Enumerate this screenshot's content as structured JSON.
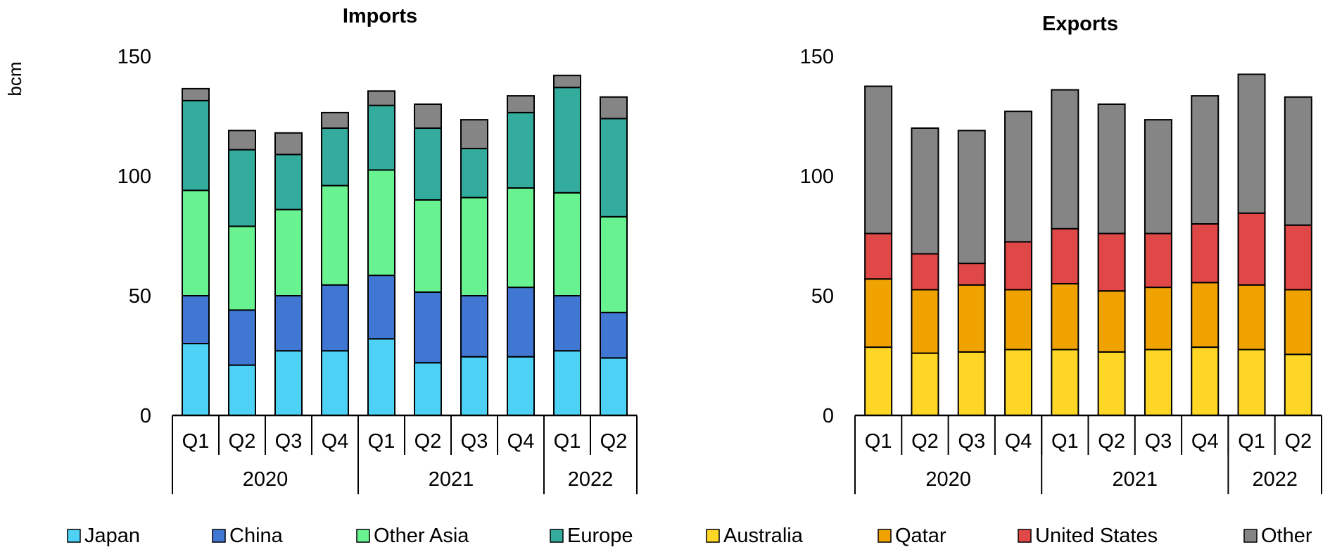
{
  "unit_label": "bcm",
  "chart_data": [
    {
      "type": "bar",
      "stacked": true,
      "title": "Imports",
      "ylabel": "bcm",
      "ylim": [
        0,
        150
      ],
      "yticks": [
        0,
        50,
        100,
        150
      ],
      "categories": [
        "Q1",
        "Q2",
        "Q3",
        "Q4",
        "Q1",
        "Q2",
        "Q3",
        "Q4",
        "Q1",
        "Q2"
      ],
      "groups": [
        {
          "label": "2020",
          "count": 4
        },
        {
          "label": "2021",
          "count": 4
        },
        {
          "label": "2022",
          "count": 2
        }
      ],
      "series": [
        {
          "name": "Japan",
          "color": "#4dd2f5",
          "values": [
            30,
            21,
            27,
            27,
            32,
            22,
            24.5,
            24.5,
            27,
            24
          ]
        },
        {
          "name": "China",
          "color": "#3f77d3",
          "values": [
            20,
            23,
            23,
            27.5,
            26.5,
            29.5,
            25.5,
            29,
            23,
            19
          ]
        },
        {
          "name": "Other Asia",
          "color": "#69f390",
          "values": [
            44,
            35,
            36,
            41.5,
            44,
            38.5,
            41,
            41.5,
            43,
            40
          ]
        },
        {
          "name": "Europe",
          "color": "#33ab9d",
          "values": [
            37.5,
            32,
            23,
            24,
            27,
            30,
            20.5,
            31.5,
            44,
            41
          ]
        },
        {
          "name": "Other",
          "color": "#858585",
          "values": [
            5,
            8,
            9,
            6.5,
            6,
            10,
            12,
            7,
            5,
            9
          ]
        }
      ]
    },
    {
      "type": "bar",
      "stacked": true,
      "title": "Exports",
      "ylabel": "",
      "ylim": [
        0,
        150
      ],
      "yticks": [
        0,
        50,
        100,
        150
      ],
      "categories": [
        "Q1",
        "Q2",
        "Q3",
        "Q4",
        "Q1",
        "Q2",
        "Q3",
        "Q4",
        "Q1",
        "Q2"
      ],
      "groups": [
        {
          "label": "2020",
          "count": 4
        },
        {
          "label": "2021",
          "count": 4
        },
        {
          "label": "2022",
          "count": 2
        }
      ],
      "series": [
        {
          "name": "Australia",
          "color": "#fdd626",
          "values": [
            28.5,
            26,
            26.5,
            27.5,
            27.5,
            26.5,
            27.5,
            28.5,
            27.5,
            25.5
          ]
        },
        {
          "name": "Qatar",
          "color": "#f0a300",
          "values": [
            28.5,
            26.5,
            28,
            25,
            27.5,
            25.5,
            26,
            27,
            27,
            27
          ]
        },
        {
          "name": "United States",
          "color": "#e04747",
          "values": [
            19,
            15,
            9,
            20,
            23,
            24,
            22.5,
            24.5,
            30,
            27
          ]
        },
        {
          "name": "Other",
          "color": "#858585",
          "values": [
            61.5,
            52.5,
            55.5,
            54.5,
            58,
            54,
            47.5,
            53.5,
            58,
            53.5
          ]
        }
      ]
    }
  ],
  "legend": [
    {
      "name": "Japan",
      "color": "#4dd2f5"
    },
    {
      "name": "China",
      "color": "#3f77d3"
    },
    {
      "name": "Other Asia",
      "color": "#69f390"
    },
    {
      "name": "Europe",
      "color": "#33ab9d"
    },
    {
      "name": "Australia",
      "color": "#fdd626"
    },
    {
      "name": "Qatar",
      "color": "#f0a300"
    },
    {
      "name": "United States",
      "color": "#e04747"
    },
    {
      "name": "Other",
      "color": "#858585"
    }
  ]
}
